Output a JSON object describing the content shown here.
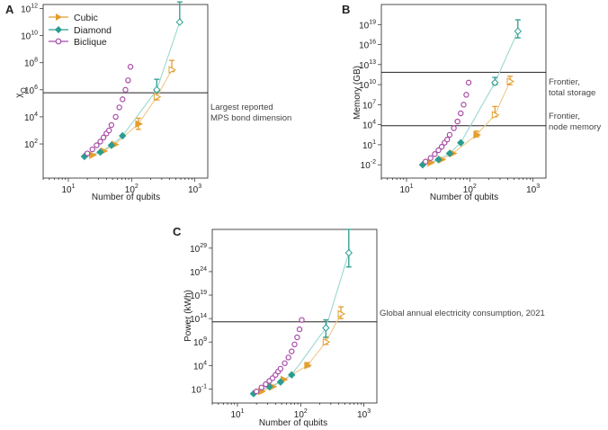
{
  "colors": {
    "cubic": "#e39e2d",
    "diamond": "#2a9d8f",
    "biclique": "#a64ca6",
    "cubic_fit": "#f0c987",
    "diamond_fit": "#9ad7cf"
  },
  "legend": [
    "Cubic",
    "Diamond",
    "Biclique"
  ],
  "panels": [
    {
      "letter": "A",
      "xlabel": "Number of qubits",
      "ylabel": "χ_Q",
      "annotation": [
        "Largest reported",
        "MPS bond dimension"
      ]
    },
    {
      "letter": "B",
      "xlabel": "Number of qubits",
      "ylabel": "Memory (GB)",
      "annotations": [
        [
          "Frontier,",
          "total storage"
        ],
        [
          "Frontier,",
          "node memory"
        ]
      ]
    },
    {
      "letter": "C",
      "xlabel": "Number of qubits",
      "ylabel": "Power (kWh)",
      "annotation": [
        "Global annual electricity consumption, 2021"
      ]
    }
  ],
  "chart_data": [
    {
      "type": "scatter",
      "title": "",
      "xlabel": "Number of qubits",
      "ylabel": "χ_Q",
      "x_scale": "log",
      "y_scale": "log",
      "xlim": [
        4,
        1600
      ],
      "ylim": [
        0.3,
        2000000000000.0
      ],
      "x_ticks": [
        "10^1",
        "10^2",
        "10^3"
      ],
      "y_ticks": [
        "10^2",
        "10^4",
        "10^6",
        "10^8",
        "10^10",
        "10^12"
      ],
      "hline": 600000,
      "series": [
        {
          "name": "Cubic",
          "x": [
            24,
            36,
            54,
            128,
            250,
            432
          ],
          "y": [
            15,
            30,
            90,
            3000,
            300000,
            30000000
          ],
          "err": [
            [
              15,
              15
            ],
            [
              30,
              30
            ],
            [
              90,
              90
            ],
            [
              1800,
              5000
            ],
            [
              120000,
              800000
            ],
            [
              8000000,
              120000000
            ]
          ]
        },
        {
          "name": "Diamond",
          "x": [
            18,
            32,
            48,
            72,
            250,
            576
          ],
          "y": [
            12,
            25,
            80,
            400,
            1000000,
            100000000000
          ],
          "err": [
            [
              12,
              12
            ],
            [
              25,
              25
            ],
            [
              80,
              80
            ],
            [
              400,
              400
            ],
            [
              200000,
              5000000
            ],
            [
              1000000000,
              3000000000000
            ]
          ]
        },
        {
          "name": "Biclique",
          "x": [
            20,
            24,
            28,
            32,
            36,
            40,
            44,
            48,
            56,
            64,
            72,
            80,
            88,
            96
          ],
          "y": [
            20,
            40,
            80,
            150,
            300,
            600,
            1000,
            2500,
            10000,
            50000,
            200000,
            1000000,
            5000000,
            50000000
          ]
        }
      ]
    },
    {
      "type": "scatter",
      "title": "",
      "xlabel": "Number of qubits",
      "ylabel": "Memory (GB)",
      "x_scale": "log",
      "y_scale": "log",
      "xlim": [
        4,
        1600
      ],
      "ylim": [
        0.0001,
        1e+22
      ],
      "x_ticks": [
        "10^1",
        "10^2",
        "10^3"
      ],
      "y_ticks": [
        "10^-2",
        "10^1",
        "10^4",
        "10^7",
        "10^10",
        "10^13",
        "10^16",
        "10^19"
      ],
      "hlines": [
        700000000000,
        7000
      ],
      "series": [
        {
          "name": "Cubic",
          "x": [
            24,
            36,
            54,
            128,
            250,
            432
          ],
          "y": [
            0.02,
            0.06,
            0.5,
            300,
            300000,
            30000000000
          ],
          "err": [
            [
              0.02,
              0.02
            ],
            [
              0.06,
              0.06
            ],
            [
              0.5,
              0.5
            ],
            [
              150,
              800
            ],
            [
              150000,
              5000000
            ],
            [
              20000000000,
              150000000000
            ]
          ]
        },
        {
          "name": "Diamond",
          "x": [
            18,
            32,
            48,
            72,
            250,
            576
          ],
          "y": [
            0.01,
            0.06,
            0.5,
            20,
            20000000000,
            1000000000000000000
          ],
          "err": [
            [
              0.01,
              0.01
            ],
            [
              0.06,
              0.06
            ],
            [
              0.5,
              0.5
            ],
            [
              20,
              20
            ],
            [
              10000000000,
              100000000000
            ],
            [
              900000000000000000,
              50000000000000000000
            ]
          ]
        },
        {
          "name": "Biclique",
          "x": [
            20,
            24,
            28,
            32,
            36,
            40,
            44,
            48,
            56,
            64,
            72,
            80,
            88,
            96
          ],
          "y": [
            0.03,
            0.1,
            0.4,
            1.5,
            5,
            20,
            60,
            300,
            3000,
            30000,
            500000,
            10000000,
            300000000,
            20000000000
          ]
        }
      ]
    },
    {
      "type": "scatter",
      "title": "",
      "xlabel": "Number of qubits",
      "ylabel": "Power (kWh)",
      "x_scale": "log",
      "y_scale": "log",
      "xlim": [
        4,
        1600
      ],
      "ylim": [
        0.0001,
        1e+33
      ],
      "x_ticks": [
        "10^1",
        "10^2",
        "10^3"
      ],
      "y_ticks": [
        "10^-1",
        "10^4",
        "10^9",
        "10^14",
        "10^19",
        "10^24",
        "10^29"
      ],
      "hline": 20000000000000,
      "series": [
        {
          "name": "Cubic",
          "x": [
            24,
            36,
            54,
            128,
            250,
            432
          ],
          "y": [
            0.03,
            0.3,
            10,
            10000,
            1000000000,
            1000000000000000
          ],
          "err": [
            [
              0.03,
              0.03
            ],
            [
              0.3,
              0.3
            ],
            [
              10,
              10
            ],
            [
              5000,
              30000
            ],
            [
              700000000,
              10000000000
            ],
            [
              900000000000000,
              30000000000000000
            ]
          ]
        },
        {
          "name": "Diamond",
          "x": [
            18,
            32,
            48,
            72,
            250,
            576
          ],
          "y": [
            0.01,
            0.3,
            3,
            100,
            1000000000000,
            10000000000000000000000000000
          ],
          "err": [
            [
              0.01,
              0.01
            ],
            [
              0.3,
              0.3
            ],
            [
              3,
              3
            ],
            [
              100,
              100
            ],
            [
              990000000000,
              50000000000000
            ],
            [
              9990000000000000000000000000,
              1000000000000000000000000000000000
            ]
          ]
        },
        {
          "name": "Biclique",
          "x": [
            20,
            24,
            28,
            32,
            36,
            40,
            44,
            48,
            56,
            64,
            72,
            80,
            88,
            96,
            104
          ],
          "y": [
            0.03,
            0.2,
            1,
            5,
            20,
            100,
            500,
            2000,
            30000,
            500000,
            10000000,
            300000000,
            10000000000,
            500000000000,
            50000000000000
          ]
        }
      ]
    }
  ]
}
